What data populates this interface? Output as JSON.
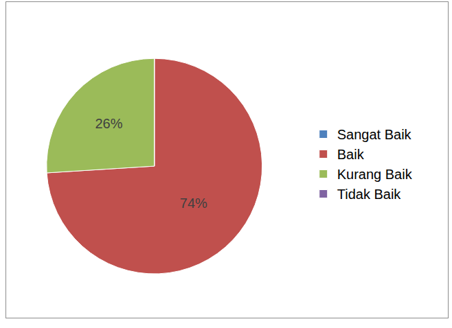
{
  "chart_data": {
    "type": "pie",
    "categories": [
      "Sangat Baik",
      "Baik",
      "Kurang Baik",
      "Tidak Baik"
    ],
    "values": [
      0,
      74,
      26,
      0
    ],
    "value_labels": [
      null,
      "74%",
      "26%",
      null
    ],
    "colors": [
      "#4f81bd",
      "#c0504d",
      "#9bbb59",
      "#8064a2"
    ],
    "data_labels": true,
    "legend": "right"
  }
}
